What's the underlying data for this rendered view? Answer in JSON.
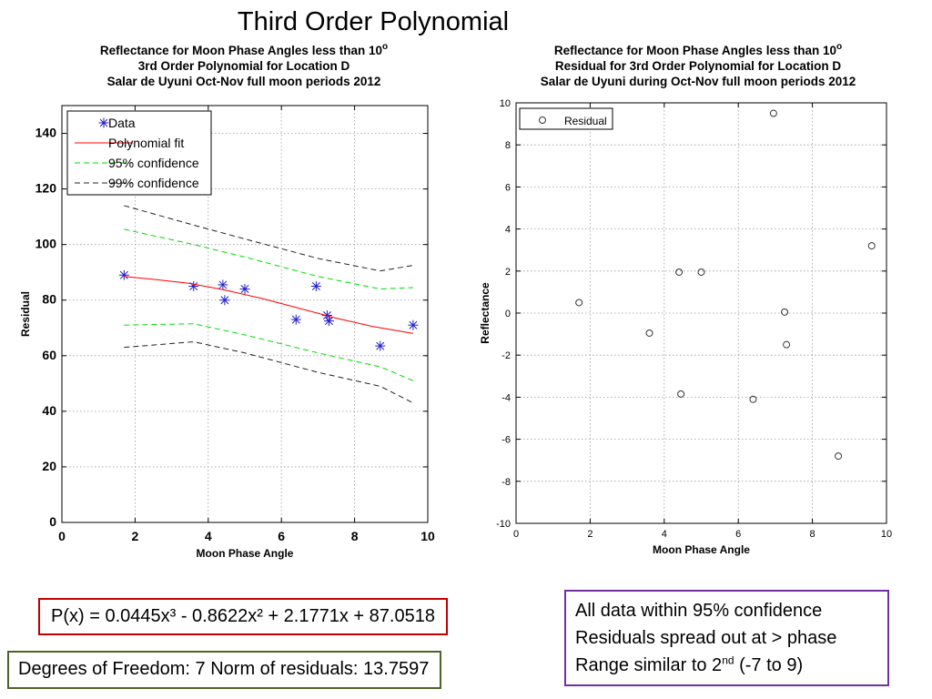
{
  "slide": {
    "title": "Third Order Polynomial",
    "equation": "P(x) = 0.0445x³ - 0.8622x² + 2.1771x + 87.0518",
    "dof": "Degrees of Freedom: 7   Norm of residuals: 13.7597",
    "notes": {
      "line1": "All data within 95% confidence",
      "line2": "Residuals spread out at > phase",
      "line3_pre": "Range similar to 2",
      "line3_sup": "nd",
      "line3_post": " (-7 to 9)"
    }
  },
  "colors": {
    "data_marker": "#1f1fd0",
    "fit": "#ff0000",
    "conf95": "#00dd00",
    "conf99": "#222222",
    "equation_border": "#c00000",
    "dof_border": "#4f6228",
    "notes_border": "#7030a0"
  },
  "chart_data": [
    {
      "type": "scatter",
      "title_lines": [
        "Reflectance for Moon Phase Angles less than 10",
        "3rd Order Polynomial for Location D",
        "Salar de Uyuni Oct-Nov full moon periods 2012"
      ],
      "title_sup": "o",
      "xlabel": "Moon Phase Angle",
      "ylabel": "Residual",
      "xlim": [
        0,
        10
      ],
      "ylim": [
        0,
        150
      ],
      "xticks": [
        0,
        2,
        4,
        6,
        8,
        10
      ],
      "yticks": [
        0,
        20,
        40,
        60,
        80,
        100,
        120,
        140
      ],
      "grid": true,
      "legend_position": "top-left",
      "legend": [
        "Data",
        "Polynomial fit",
        "95% confidence",
        "99% confidence"
      ],
      "series": [
        {
          "name": "Data",
          "marker": "asterisk",
          "x": [
            1.7,
            3.6,
            4.4,
            4.45,
            5.0,
            6.4,
            6.95,
            7.25,
            7.3,
            8.7,
            9.6
          ],
          "y": [
            89,
            85,
            85.5,
            80,
            84,
            73,
            85,
            74.5,
            72.5,
            63.5,
            71
          ]
        },
        {
          "name": "Polynomial fit",
          "line": "solid",
          "x": [
            1.7,
            2.5,
            3.5,
            4.5,
            5.5,
            6.5,
            7.5,
            8.5,
            9.6
          ],
          "y": [
            88.5,
            87.5,
            86,
            83.5,
            80.5,
            77,
            73.5,
            70.5,
            68
          ]
        },
        {
          "name": "95% confidence upper",
          "line": "dashed",
          "x": [
            1.7,
            3.6,
            5.0,
            7.0,
            8.7,
            9.6
          ],
          "y": [
            105.5,
            100,
            95.5,
            88.5,
            84,
            84.5
          ]
        },
        {
          "name": "95% confidence lower",
          "line": "dashed",
          "x": [
            1.7,
            3.6,
            5.0,
            7.0,
            8.7,
            9.6
          ],
          "y": [
            71,
            71.5,
            67.5,
            61,
            56,
            51
          ]
        },
        {
          "name": "99% confidence upper",
          "line": "dashed",
          "x": [
            1.7,
            3.6,
            5.0,
            7.0,
            8.7,
            9.6
          ],
          "y": [
            114,
            107,
            102,
            95,
            90.5,
            92.5
          ]
        },
        {
          "name": "99% confidence lower",
          "line": "dashed",
          "x": [
            1.7,
            3.6,
            5.0,
            7.0,
            8.7,
            9.6
          ],
          "y": [
            63,
            65,
            61,
            54,
            49,
            43
          ]
        }
      ]
    },
    {
      "type": "scatter",
      "title_lines": [
        "Reflectance for Moon Phase Angles less than 10",
        "Residual for 3rd Order Polynomial for Location D",
        "Salar de Uyuni during Oct-Nov full moon periods 2012"
      ],
      "title_sup": "o",
      "xlabel": "Moon Phase Angle",
      "ylabel": "Reflectance",
      "xlim": [
        0,
        10
      ],
      "ylim": [
        -10,
        10
      ],
      "xticks": [
        0,
        2,
        4,
        6,
        8,
        10
      ],
      "yticks": [
        -10,
        -8,
        -6,
        -4,
        -2,
        0,
        2,
        4,
        6,
        8,
        10
      ],
      "grid": true,
      "legend_position": "top-left",
      "legend": [
        "Residual"
      ],
      "series": [
        {
          "name": "Residual",
          "marker": "circle",
          "x": [
            1.7,
            3.6,
            4.4,
            4.45,
            5.0,
            6.4,
            6.95,
            7.25,
            7.3,
            8.7,
            9.6
          ],
          "y": [
            0.5,
            -0.95,
            1.95,
            -3.85,
            1.95,
            -4.1,
            9.5,
            0.05,
            -1.5,
            -6.8,
            3.2
          ]
        }
      ]
    }
  ]
}
